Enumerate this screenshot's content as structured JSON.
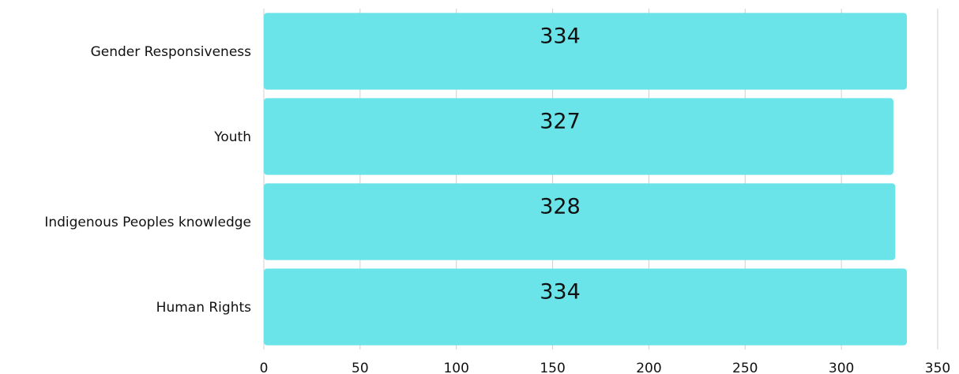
{
  "chart_data": {
    "type": "bar",
    "orientation": "horizontal",
    "categories": [
      "Gender Responsiveness",
      "Youth",
      "Indigenous Peoples knowledge",
      "Human Rights"
    ],
    "values": [
      334,
      327,
      328,
      334
    ],
    "xlim": [
      0,
      350
    ],
    "xticks": [
      0,
      50,
      100,
      150,
      200,
      250,
      300,
      350
    ],
    "tick_labels": [
      "0",
      "50",
      "100",
      "150",
      "200",
      "250",
      "300",
      "350"
    ],
    "data_labels": [
      "334",
      "327",
      "328",
      "334"
    ],
    "bar_color": "#6ae4e8",
    "grid": true,
    "legend": "none",
    "title": "",
    "xlabel": "",
    "ylabel": ""
  }
}
